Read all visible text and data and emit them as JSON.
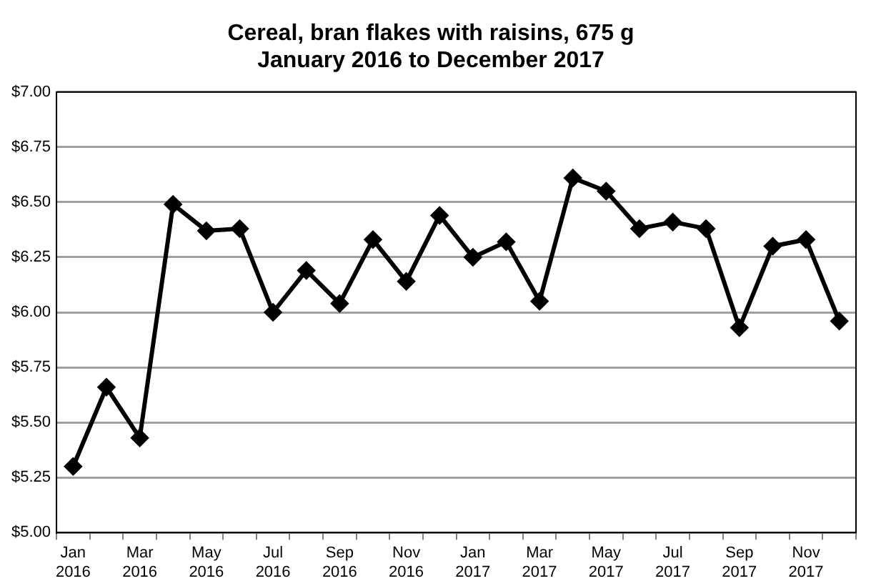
{
  "chart_data": {
    "type": "line",
    "title": "Cereal, bran flakes with raisins, 675 g",
    "subtitle": "January 2016 to December 2017",
    "categories": [
      "Jan 2016",
      null,
      "Mar 2016",
      null,
      "May 2016",
      null,
      "Jul 2016",
      null,
      "Sep 2016",
      null,
      "Nov 2016",
      null,
      "Jan 2017",
      null,
      "Mar 2017",
      null,
      "May 2017",
      null,
      "Jul 2017",
      null,
      "Sep 2017",
      null,
      "Nov 2017",
      null
    ],
    "values": [
      5.3,
      5.66,
      5.43,
      6.49,
      6.37,
      6.38,
      6.0,
      6.19,
      6.04,
      6.33,
      6.14,
      6.44,
      6.25,
      6.32,
      6.05,
      6.61,
      6.55,
      6.38,
      6.41,
      6.38,
      5.93,
      6.3,
      6.33,
      5.96
    ],
    "color": "#000000",
    "marker": "diamond",
    "line_style": "solid",
    "grid": "y",
    "legend": false,
    "ylim": [
      5,
      7
    ],
    "yticks": [
      {
        "value": 5,
        "label": "$5.00"
      },
      {
        "value": 5.25,
        "label": "$5.25"
      },
      {
        "value": 5.5,
        "label": "$5.50"
      },
      {
        "value": 5.75,
        "label": "$5.75"
      },
      {
        "value": 6,
        "label": "$6.00"
      },
      {
        "value": 6.25,
        "label": "$6.25"
      },
      {
        "value": 6.5,
        "label": "$6.50"
      },
      {
        "value": 6.75,
        "label": "$6.75"
      },
      {
        "value": 7,
        "label": "$7.00"
      }
    ]
  }
}
